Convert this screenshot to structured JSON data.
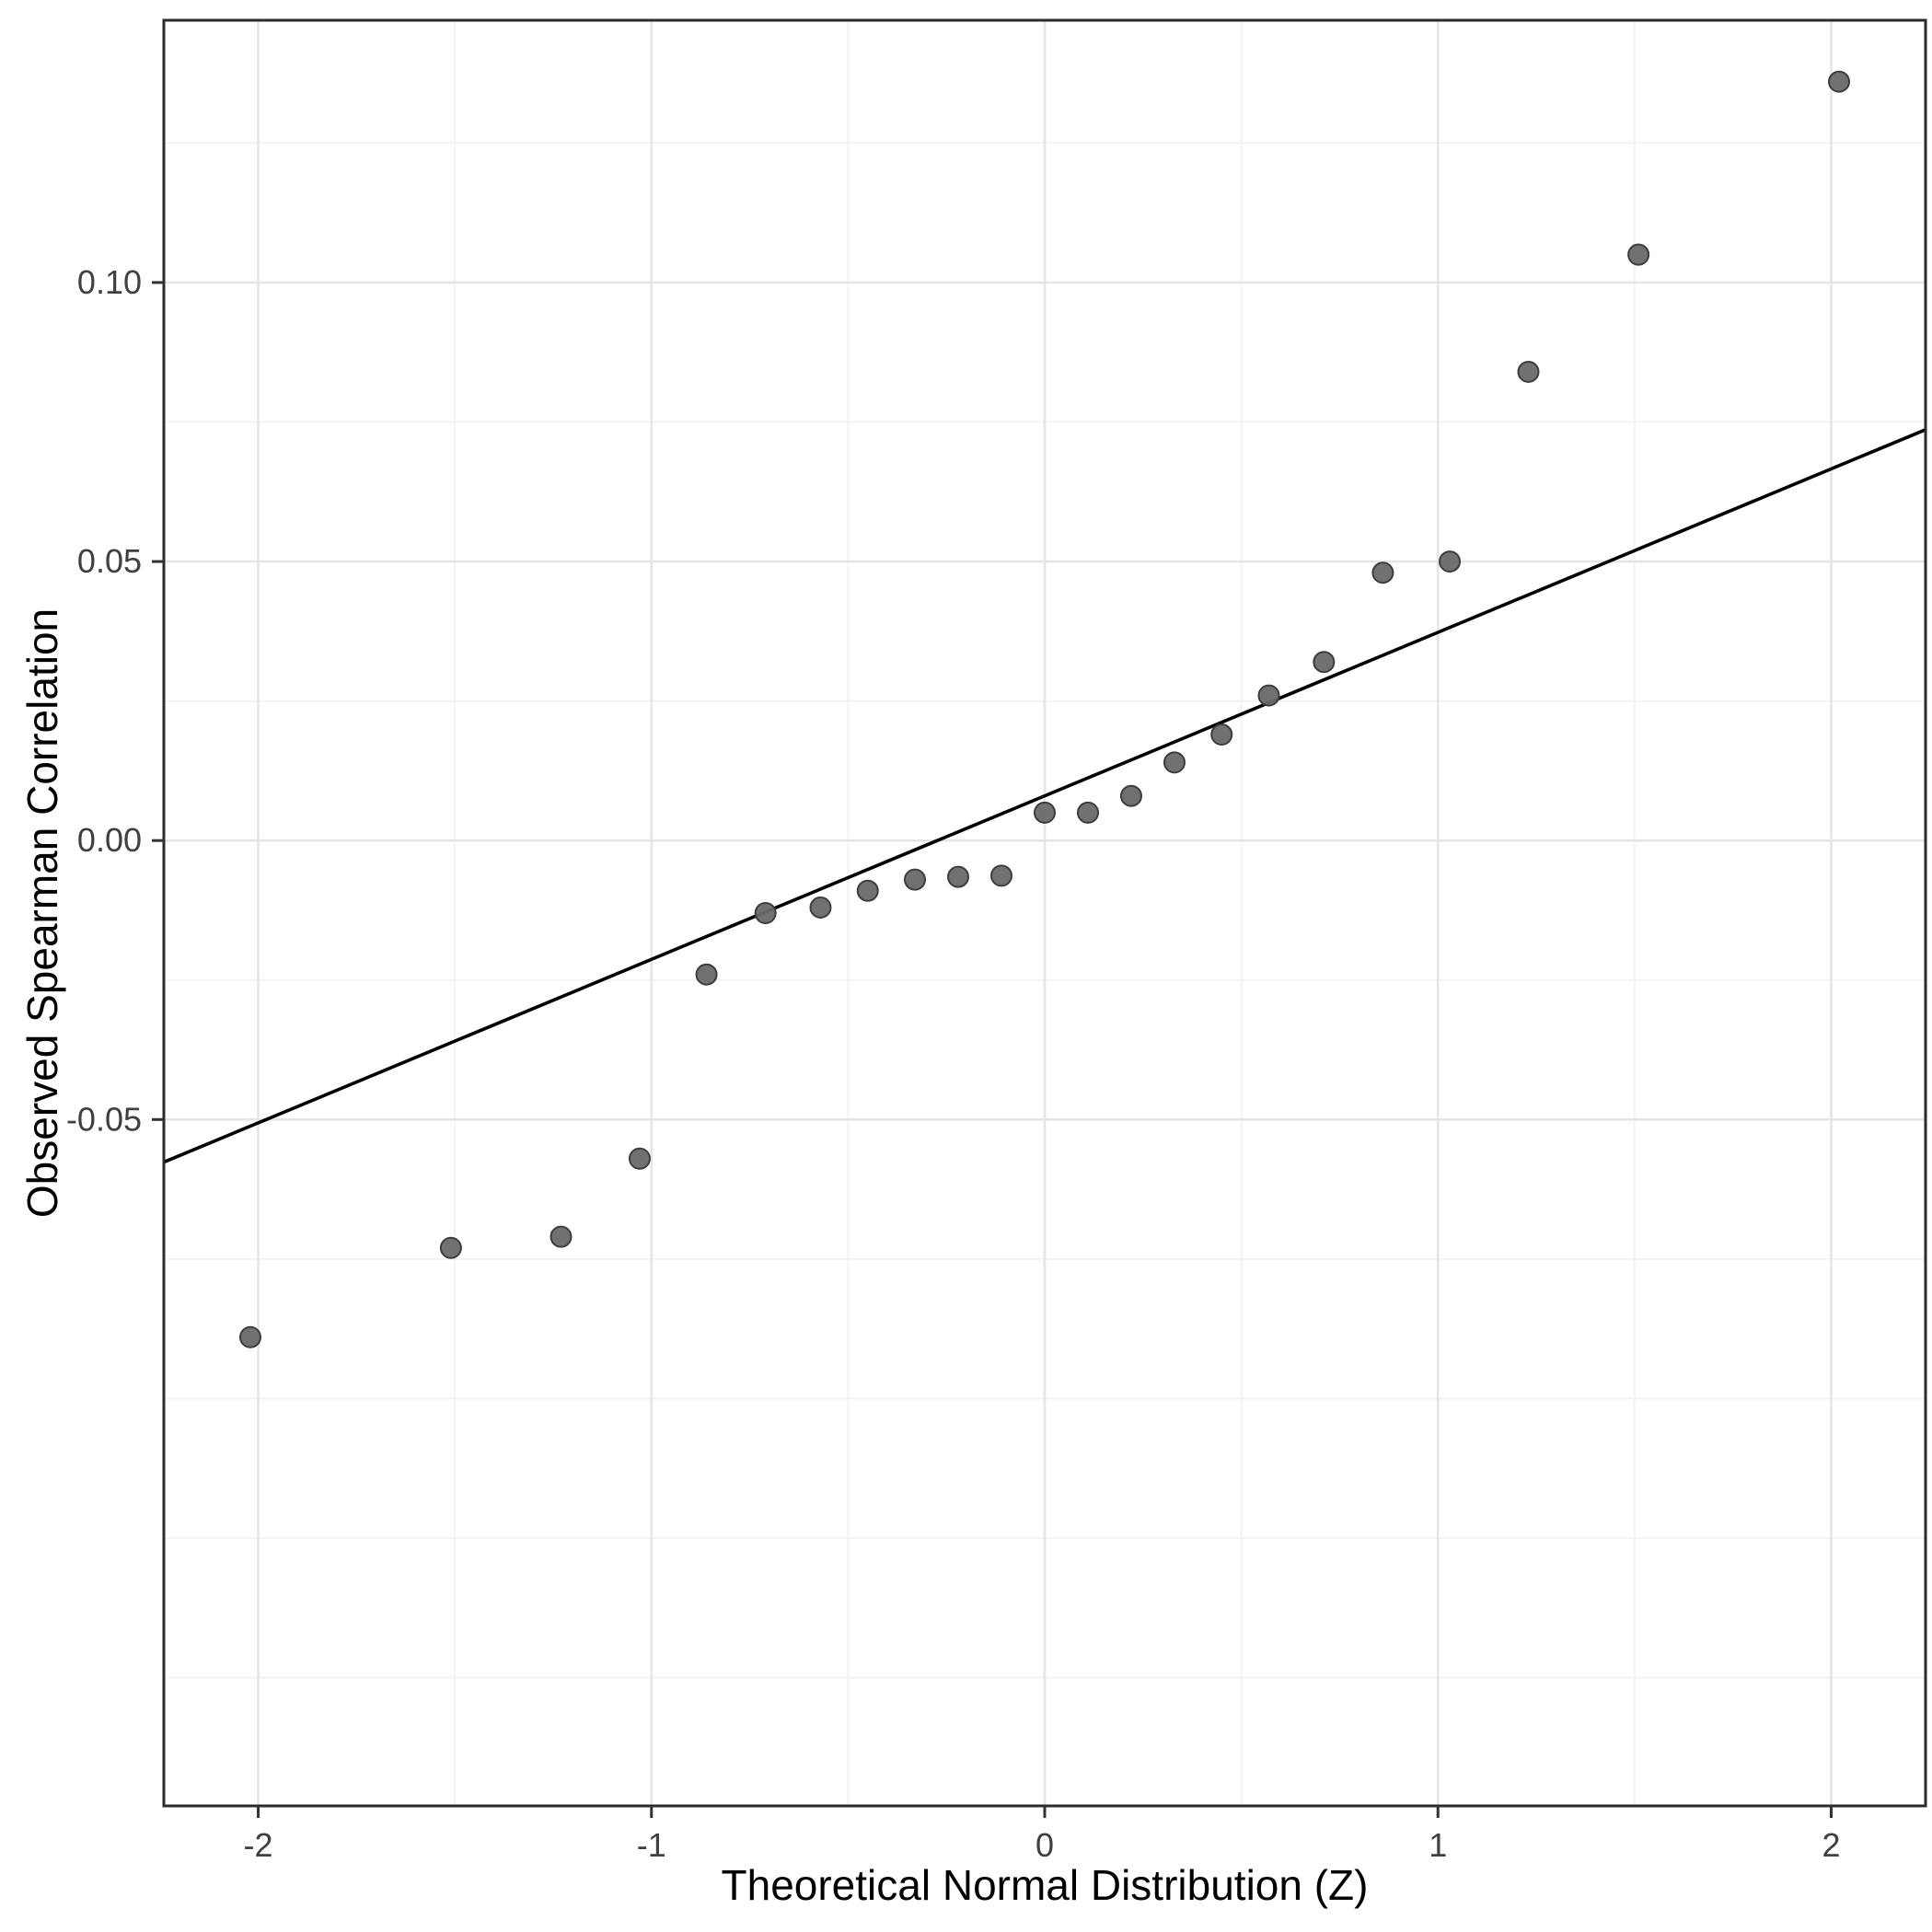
{
  "chart_data": {
    "type": "scatter",
    "title": "",
    "xlabel": "Theoretical Normal Distribution (Z)",
    "ylabel": "Observed Spearman Correlation",
    "xlim": [
      -2.24,
      2.24
    ],
    "ylim": [
      -0.173,
      0.147
    ],
    "grid": true,
    "legend": "none",
    "x_ticks": [
      {
        "v": -2,
        "label": "-2"
      },
      {
        "v": -1,
        "label": "-1"
      },
      {
        "v": 0,
        "label": "0"
      },
      {
        "v": 1,
        "label": "1"
      },
      {
        "v": 2,
        "label": "2"
      }
    ],
    "y_ticks": [
      {
        "v": -0.05,
        "label": "-0.05"
      },
      {
        "v": 0.0,
        "label": "0.00"
      },
      {
        "v": 0.05,
        "label": "0.05"
      },
      {
        "v": 0.1,
        "label": "0.10"
      }
    ],
    "x_minor": [
      -1.5,
      -0.5,
      0.5,
      1.5
    ],
    "y_minor": [
      -0.15,
      -0.125,
      -0.1,
      -0.075,
      -0.025,
      0.025,
      0.075,
      0.125
    ],
    "points": [
      {
        "z": -2.02,
        "rho": -0.089
      },
      {
        "z": -1.51,
        "rho": -0.073
      },
      {
        "z": -1.23,
        "rho": -0.071
      },
      {
        "z": -1.03,
        "rho": -0.057
      },
      {
        "z": -0.86,
        "rho": -0.024
      },
      {
        "z": -0.71,
        "rho": -0.013
      },
      {
        "z": -0.57,
        "rho": -0.012
      },
      {
        "z": -0.45,
        "rho": -0.009
      },
      {
        "z": -0.33,
        "rho": -0.007
      },
      {
        "z": -0.22,
        "rho": -0.0065
      },
      {
        "z": -0.11,
        "rho": -0.0063
      },
      {
        "z": 0.0,
        "rho": 0.005
      },
      {
        "z": 0.11,
        "rho": 0.005
      },
      {
        "z": 0.22,
        "rho": 0.008
      },
      {
        "z": 0.33,
        "rho": 0.014
      },
      {
        "z": 0.45,
        "rho": 0.019
      },
      {
        "z": 0.57,
        "rho": 0.026
      },
      {
        "z": 0.71,
        "rho": 0.032
      },
      {
        "z": 0.86,
        "rho": 0.048
      },
      {
        "z": 1.03,
        "rho": 0.05
      },
      {
        "z": 1.23,
        "rho": 0.084
      },
      {
        "z": 1.51,
        "rho": 0.105
      },
      {
        "z": 2.02,
        "rho": 0.136
      }
    ],
    "ref_line": {
      "intercept": 0.008,
      "slope": 0.0293
    },
    "colors": {
      "background": "#ffffff",
      "panel_bg": "#ffffff",
      "panel_border": "#2b2b2b",
      "grid_major": "#e5e5e5",
      "grid_minor": "#f2f2f2",
      "point_fill": "#696969",
      "point_stroke": "#3d3d3d",
      "line": "#000000",
      "tick_mark": "#333333",
      "tick_label": "#404040"
    }
  }
}
